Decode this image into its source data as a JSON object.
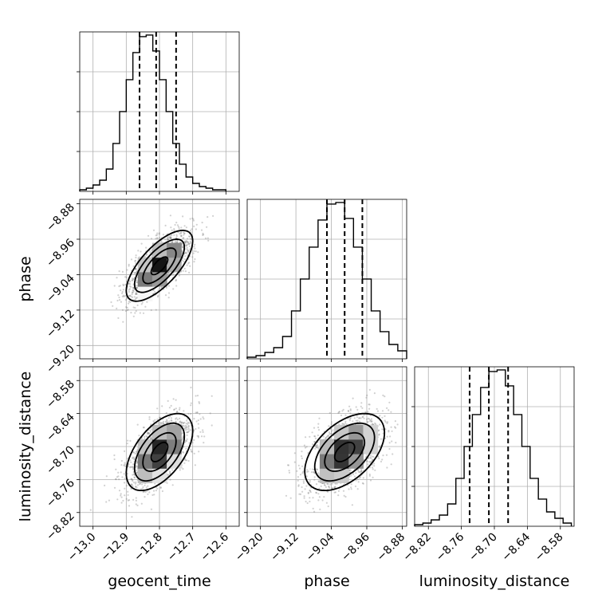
{
  "chart_data": {
    "type": "corner",
    "grid": true,
    "parameters": [
      {
        "name": "geocent_time",
        "label": "geocent_time",
        "lim": [
          -13.04,
          -12.56
        ],
        "ticks": [
          -13.0,
          -12.9,
          -12.8,
          -12.7,
          -12.6
        ],
        "tick_labels": [
          "−13.0",
          "−12.9",
          "−12.8",
          "−12.7",
          "−12.6"
        ],
        "quantiles": [
          -12.86,
          -12.81,
          -12.75
        ],
        "hist_bin_edges": [
          -13.04,
          -13.02,
          -13.0,
          -12.98,
          -12.96,
          -12.94,
          -12.92,
          -12.9,
          -12.88,
          -12.86,
          -12.84,
          -12.82,
          -12.8,
          -12.78,
          -12.76,
          -12.74,
          -12.72,
          -12.7,
          -12.68,
          -12.66,
          -12.64,
          -12.62,
          -12.6
        ],
        "hist_counts": [
          1,
          2,
          4,
          7,
          14,
          30,
          50,
          70,
          87,
          97,
          98,
          88,
          70,
          50,
          30,
          17,
          9,
          5,
          3,
          2,
          1,
          1
        ]
      },
      {
        "name": "phase",
        "label": "phase",
        "lim": [
          -9.23,
          -8.87
        ],
        "ticks": [
          -9.2,
          -9.12,
          -9.04,
          -8.96,
          -8.88
        ],
        "tick_labels": [
          "−9.20",
          "−9.12",
          "−9.04",
          "−8.96",
          "−8.88"
        ],
        "quantiles": [
          -9.05,
          -9.01,
          -8.97
        ],
        "hist_bin_edges": [
          -9.23,
          -9.21,
          -9.19,
          -9.17,
          -9.15,
          -9.13,
          -9.11,
          -9.09,
          -9.07,
          -9.05,
          -9.03,
          -9.01,
          -8.99,
          -8.97,
          -8.95,
          -8.93,
          -8.91,
          -8.89,
          -8.87
        ],
        "hist_counts": [
          1,
          2,
          4,
          7,
          14,
          30,
          50,
          70,
          87,
          97,
          98,
          88,
          70,
          50,
          30,
          17,
          9,
          5
        ]
      },
      {
        "name": "luminosity_distance",
        "label": "luminosity_distance",
        "lim": [
          -8.845,
          -8.555
        ],
        "ticks": [
          -8.82,
          -8.76,
          -8.7,
          -8.64,
          -8.58
        ],
        "tick_labels": [
          "−8.82",
          "−8.76",
          "−8.70",
          "−8.64",
          "−8.58"
        ],
        "quantiles": [
          -8.745,
          -8.71,
          -8.675
        ],
        "hist_bin_edges": [
          -8.845,
          -8.83,
          -8.815,
          -8.8,
          -8.785,
          -8.77,
          -8.755,
          -8.74,
          -8.725,
          -8.71,
          -8.695,
          -8.68,
          -8.665,
          -8.65,
          -8.635,
          -8.62,
          -8.605,
          -8.59,
          -8.575,
          -8.56
        ],
        "hist_counts": [
          1,
          2,
          4,
          7,
          14,
          30,
          50,
          70,
          87,
          97,
          98,
          88,
          70,
          50,
          30,
          17,
          9,
          5,
          2
        ]
      }
    ],
    "pairs": [
      {
        "x": "geocent_time",
        "y": "phase",
        "mean": [
          -12.8,
          -9.02
        ],
        "sd": [
          0.05,
          0.04
        ],
        "corr": 0.7
      },
      {
        "x": "geocent_time",
        "y": "luminosity_distance",
        "mean": [
          -12.8,
          -8.71
        ],
        "sd": [
          0.05,
          0.035
        ],
        "corr": 0.55
      },
      {
        "x": "phase",
        "y": "luminosity_distance",
        "mean": [
          -9.01,
          -8.71
        ],
        "sd": [
          0.045,
          0.035
        ],
        "corr": 0.5
      }
    ],
    "contour_levels_sigma": [
      0.5,
      1.0,
      1.5,
      2.0
    ]
  }
}
